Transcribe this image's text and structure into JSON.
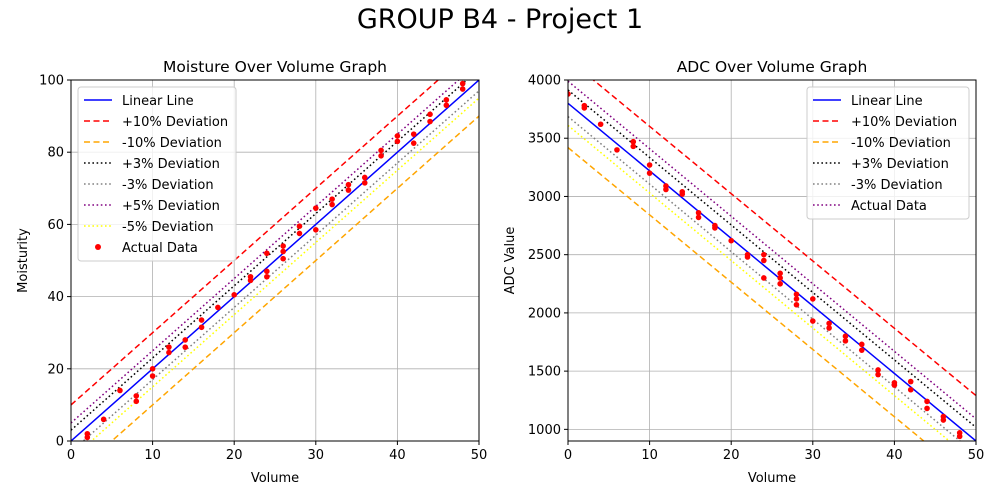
{
  "figure_title": "GROUP B4 - Project 1",
  "chart_data": [
    {
      "type": "line",
      "title": "Moisture Over Volume Graph",
      "xlabel": "Volume",
      "ylabel": "Moisturity",
      "xlim": [
        0,
        50
      ],
      "ylim": [
        0,
        100
      ],
      "xticks": [
        "0",
        "10",
        "20",
        "30",
        "40",
        "50"
      ],
      "yticks": [
        "0",
        "20",
        "40",
        "60",
        "80",
        "100"
      ],
      "grid": true,
      "legend_position": "top-left",
      "lines": [
        {
          "name": "Linear Line",
          "color": "#0000ff",
          "style": "solid",
          "x": [
            0,
            50
          ],
          "y": [
            0,
            100
          ]
        },
        {
          "name": "+10% Deviation",
          "color": "#ff0000",
          "style": "dashed",
          "x": [
            0,
            50
          ],
          "y": [
            10,
            110
          ]
        },
        {
          "name": "-10% Deviation",
          "color": "#ffa500",
          "style": "dashed",
          "x": [
            0,
            50
          ],
          "y": [
            -10,
            90
          ]
        },
        {
          "name": "+3% Deviation",
          "color": "#000000",
          "style": "dotted",
          "x": [
            0,
            50
          ],
          "y": [
            3,
            103
          ]
        },
        {
          "name": "-3% Deviation",
          "color": "#808080",
          "style": "dotted",
          "x": [
            0,
            50
          ],
          "y": [
            -3,
            97
          ]
        },
        {
          "name": "+5% Deviation",
          "color": "#800080",
          "style": "dotted",
          "x": [
            0,
            50
          ],
          "y": [
            5,
            105
          ]
        },
        {
          "name": "-5% Deviation",
          "color": "#ffff00",
          "style": "dotted",
          "x": [
            0,
            50
          ],
          "y": [
            -5,
            95
          ]
        }
      ],
      "scatter": {
        "name": "Actual Data",
        "color": "#ff0000",
        "points": [
          [
            2,
            1
          ],
          [
            2,
            2
          ],
          [
            4,
            6
          ],
          [
            6,
            14
          ],
          [
            8,
            11
          ],
          [
            8,
            12.5
          ],
          [
            10,
            18
          ],
          [
            10,
            20
          ],
          [
            12,
            24.5
          ],
          [
            12,
            26
          ],
          [
            14,
            26
          ],
          [
            14,
            28
          ],
          [
            16,
            31.5
          ],
          [
            16,
            33.5
          ],
          [
            18,
            37
          ],
          [
            20,
            40.5
          ],
          [
            22,
            44.5
          ],
          [
            22,
            45.5
          ],
          [
            24,
            45.5
          ],
          [
            24,
            47
          ],
          [
            24,
            52
          ],
          [
            26,
            50.5
          ],
          [
            26,
            52.5
          ],
          [
            26,
            54
          ],
          [
            28,
            57.5
          ],
          [
            28,
            59.5
          ],
          [
            30,
            58.5
          ],
          [
            30,
            64.5
          ],
          [
            32,
            65.5
          ],
          [
            32,
            67
          ],
          [
            34,
            69.5
          ],
          [
            34,
            71
          ],
          [
            36,
            71.5
          ],
          [
            36,
            73
          ],
          [
            38,
            79
          ],
          [
            38,
            80.5
          ],
          [
            40,
            83
          ],
          [
            40,
            84.5
          ],
          [
            42,
            82.5
          ],
          [
            42,
            85
          ],
          [
            44,
            88.5
          ],
          [
            44,
            90.5
          ],
          [
            46,
            93
          ],
          [
            46,
            94.5
          ],
          [
            48,
            97.5
          ],
          [
            48,
            99
          ]
        ]
      }
    },
    {
      "type": "line",
      "title": "ADC Over Volume Graph",
      "xlabel": "Volume",
      "ylabel": "ADC Value",
      "xlim": [
        0,
        50
      ],
      "ylim": [
        900,
        4000
      ],
      "xticks": [
        "0",
        "10",
        "20",
        "30",
        "40",
        "50"
      ],
      "yticks": [
        "1000",
        "1500",
        "2000",
        "2500",
        "3000",
        "3500",
        "4000"
      ],
      "grid": true,
      "legend_position": "top-right",
      "lines": [
        {
          "name": "Linear Line",
          "color": "#0000ff",
          "style": "solid",
          "x": [
            0,
            50
          ],
          "y": [
            3800,
            900
          ]
        },
        {
          "name": "+10% Deviation",
          "color": "#ff0000",
          "style": "dashed",
          "x": [
            0,
            50
          ],
          "y": [
            4180,
            1290
          ]
        },
        {
          "name": "-10% Deviation",
          "color": "#ffa500",
          "style": "dashed",
          "x": [
            0,
            50
          ],
          "y": [
            3420,
            530
          ]
        },
        {
          "name": "+3% Deviation",
          "color": "#000000",
          "style": "dotted",
          "x": [
            0,
            50
          ],
          "y": [
            3914,
            1017
          ]
        },
        {
          "name": "-3% Deviation",
          "color": "#808080",
          "style": "dotted",
          "x": [
            0,
            50
          ],
          "y": [
            3686,
            786
          ]
        },
        {
          "name": "Actual Data",
          "color": "#800080",
          "style": "dotted",
          "x": [
            0,
            50
          ],
          "y": [
            3990,
            1090
          ]
        },
        {
          "name": "",
          "color": "#ffff00",
          "style": "dotted",
          "x": [
            0,
            50
          ],
          "y": [
            3610,
            710
          ]
        }
      ],
      "scatter": {
        "name": "",
        "color": "#ff0000",
        "points": [
          [
            0,
            3880
          ],
          [
            2,
            3760
          ],
          [
            2,
            3780
          ],
          [
            4,
            3620
          ],
          [
            6,
            3400
          ],
          [
            8,
            3430
          ],
          [
            8,
            3470
          ],
          [
            10,
            3200
          ],
          [
            10,
            3270
          ],
          [
            12,
            3060
          ],
          [
            12,
            3090
          ],
          [
            14,
            3020
          ],
          [
            14,
            3040
          ],
          [
            16,
            2820
          ],
          [
            16,
            2860
          ],
          [
            18,
            2730
          ],
          [
            18,
            2750
          ],
          [
            20,
            2620
          ],
          [
            22,
            2480
          ],
          [
            22,
            2500
          ],
          [
            24,
            2300
          ],
          [
            24,
            2450
          ],
          [
            24,
            2500
          ],
          [
            26,
            2250
          ],
          [
            26,
            2300
          ],
          [
            26,
            2340
          ],
          [
            28,
            2070
          ],
          [
            28,
            2120
          ],
          [
            28,
            2160
          ],
          [
            30,
            1930
          ],
          [
            30,
            2120
          ],
          [
            32,
            1870
          ],
          [
            32,
            1910
          ],
          [
            34,
            1760
          ],
          [
            34,
            1800
          ],
          [
            36,
            1680
          ],
          [
            36,
            1730
          ],
          [
            38,
            1470
          ],
          [
            38,
            1510
          ],
          [
            40,
            1380
          ],
          [
            40,
            1400
          ],
          [
            42,
            1340
          ],
          [
            42,
            1410
          ],
          [
            44,
            1180
          ],
          [
            44,
            1240
          ],
          [
            46,
            1080
          ],
          [
            46,
            1110
          ],
          [
            48,
            940
          ],
          [
            48,
            970
          ]
        ]
      }
    }
  ]
}
